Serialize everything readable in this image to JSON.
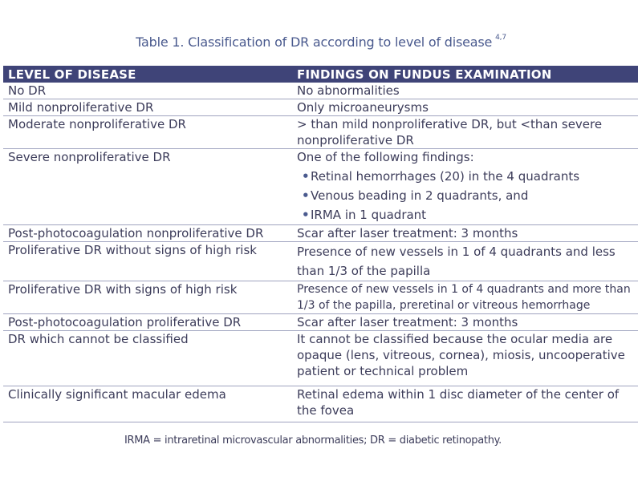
{
  "title": {
    "text": "Table 1. Classification of DR according to level of disease",
    "ref": "4,7"
  },
  "table": {
    "headers": [
      "LEVEL OF DISEASE",
      "FINDINGS ON FUNDUS EXAMINATION"
    ],
    "rows": [
      {
        "level": "No DR",
        "findings": "No abnormalities"
      },
      {
        "level": "Mild nonproliferative DR",
        "findings": "Only microaneurysms"
      },
      {
        "level": "Moderate nonproliferative DR",
        "findings": "> than mild nonproliferative DR, but <than severe nonproliferative DR"
      },
      {
        "level": "Severe nonproliferative DR",
        "findings": "One of the following findings:",
        "bullets": [
          "Retinal hemorrhages (20) in the 4 quadrants",
          "Venous beading in 2 quadrants, and",
          "IRMA in 1 quadrant"
        ]
      },
      {
        "level": "Post-photocoagulation nonproliferative DR",
        "findings": "Scar after laser treatment: 3 months"
      },
      {
        "level": "Proliferative DR without signs of high risk",
        "findings": "Presence of new vessels in 1 of 4 quadrants and less than 1/3 of the papilla"
      },
      {
        "level": "Proliferative DR with signs of high risk",
        "findings": "Presence of new vessels in 1 of 4 quadrants and more than 1/3 of the papilla, preretinal or vitreous hemorrhage"
      },
      {
        "level": "Post-photocoagulation proliferative DR",
        "findings": "Scar after laser treatment: 3 months"
      },
      {
        "level": "DR which cannot be classified",
        "findings": "It cannot be classified because the ocular media are opaque (lens, vitreous, cornea), miosis, uncooperative patient or technical problem"
      },
      {
        "level": "Clinically significant macular edema",
        "findings": "Retinal edema within 1 disc diameter of the center of the fovea"
      }
    ]
  },
  "footnote": "IRMA = intraretinal microvascular abnormalities; DR = diabetic retinopathy.",
  "colors": {
    "header_bg": "#3f4478",
    "title": "#4a5a8e",
    "rule": "#9fa3bf",
    "text": "#3c3c5a"
  }
}
